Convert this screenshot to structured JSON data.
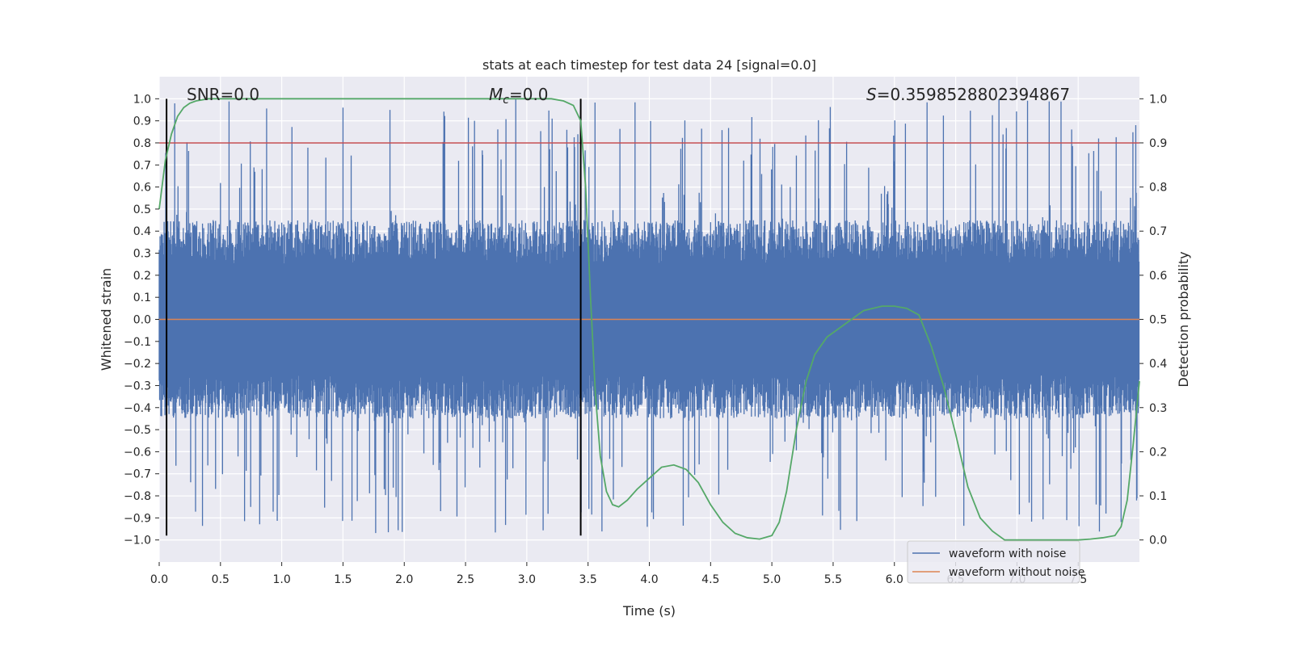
{
  "chart_data": {
    "type": "line",
    "title": "stats at each timestep for test data 24 [signal=0.0]",
    "xlabel": "Time (s)",
    "ylabel": "Whitened strain",
    "ylabel_right": "Detection probability",
    "xlim": [
      0.0,
      8.0
    ],
    "ylim": [
      -1.1,
      1.1
    ],
    "ylim_right": [
      -0.05,
      1.05
    ],
    "x_ticks": [
      0.0,
      0.5,
      1.0,
      1.5,
      2.0,
      2.5,
      3.0,
      3.5,
      4.0,
      4.5,
      5.0,
      5.5,
      6.0,
      6.5,
      7.0,
      7.5
    ],
    "x_tick_labels": [
      "0.0",
      "0.5",
      "1.0",
      "1.5",
      "2.0",
      "2.5",
      "3.0",
      "3.5",
      "4.0",
      "4.5",
      "5.0",
      "5.5",
      "6.0",
      "6.5",
      "7.0",
      "7.5"
    ],
    "y_ticks": [
      1.0,
      0.9,
      0.8,
      0.7,
      0.6,
      0.5,
      0.4,
      0.3,
      0.2,
      0.1,
      0.0,
      -0.1,
      -0.2,
      -0.3,
      -0.4,
      -0.5,
      -0.6,
      -0.7,
      -0.8,
      -0.9,
      -1.0
    ],
    "y_tick_labels": [
      "1.0",
      "0.9",
      "0.8",
      "0.7",
      "0.6",
      "0.5",
      "0.4",
      "0.3",
      "0.2",
      "0.1",
      "0.0",
      "−0.1",
      "−0.2",
      "−0.3",
      "−0.4",
      "−0.5",
      "−0.6",
      "−0.7",
      "−0.8",
      "−0.9",
      "−1.0"
    ],
    "y_right_ticks": [
      1.0,
      0.9,
      0.8,
      0.7,
      0.6,
      0.5,
      0.4,
      0.3,
      0.2,
      0.1,
      0.0
    ],
    "y_right_tick_labels": [
      "1.0",
      "0.9",
      "0.8",
      "0.7",
      "0.6",
      "0.5",
      "0.4",
      "0.3",
      "0.2",
      "0.1",
      "0.0"
    ],
    "grid": true,
    "legend_position": "lower-right",
    "annotations": {
      "snr": "SNR=0.0",
      "mc_symbol": "M",
      "mc_subscript": "c",
      "mc_value": "=0.0",
      "s_symbol": "S",
      "s_value": "=0.3598528802394867"
    },
    "series": [
      {
        "name": "waveform with noise",
        "color": "#4c72b0",
        "style": "dense noise",
        "envelope_upper": 0.45,
        "envelope_lower": -0.45,
        "peak_max": 1.0,
        "peak_min": -0.97
      },
      {
        "name": "waveform without noise",
        "color": "#dd8452",
        "x": [
          0.0,
          8.0
        ],
        "y": [
          0.0,
          0.0
        ]
      },
      {
        "name": "",
        "color": "#55a868",
        "axis": "right",
        "x": [
          0.0,
          0.05,
          0.1,
          0.15,
          0.2,
          0.25,
          0.3,
          0.4,
          0.5,
          1.0,
          2.0,
          3.0,
          3.2,
          3.3,
          3.38,
          3.44,
          3.48,
          3.52,
          3.56,
          3.6,
          3.65,
          3.7,
          3.75,
          3.82,
          3.9,
          4.0,
          4.1,
          4.2,
          4.3,
          4.4,
          4.5,
          4.6,
          4.7,
          4.8,
          4.9,
          5.0,
          5.06,
          5.12,
          5.2,
          5.28,
          5.35,
          5.45,
          5.6,
          5.75,
          5.9,
          6.0,
          6.1,
          6.2,
          6.3,
          6.4,
          6.5,
          6.6,
          6.7,
          6.8,
          6.9,
          7.0,
          7.1,
          7.2,
          7.3,
          7.4,
          7.5,
          7.6,
          7.7,
          7.8,
          7.85,
          7.9,
          7.95,
          8.0
        ],
        "y": [
          0.75,
          0.86,
          0.92,
          0.96,
          0.98,
          0.99,
          0.995,
          1.0,
          1.0,
          1.0,
          1.0,
          1.0,
          1.0,
          0.995,
          0.985,
          0.95,
          0.8,
          0.55,
          0.33,
          0.19,
          0.11,
          0.08,
          0.075,
          0.09,
          0.115,
          0.14,
          0.165,
          0.17,
          0.16,
          0.13,
          0.08,
          0.04,
          0.015,
          0.005,
          0.002,
          0.01,
          0.04,
          0.11,
          0.25,
          0.36,
          0.42,
          0.46,
          0.49,
          0.52,
          0.53,
          0.53,
          0.525,
          0.51,
          0.44,
          0.35,
          0.24,
          0.12,
          0.05,
          0.02,
          0.0,
          0.0,
          0.0,
          0.0,
          0.0,
          0.0,
          0.0,
          0.002,
          0.005,
          0.01,
          0.03,
          0.09,
          0.22,
          0.36
        ]
      }
    ],
    "horizontal_lines": [
      {
        "axis": "left",
        "y": 0.8,
        "color": "#c44e52"
      }
    ],
    "vertical_lines": [
      {
        "x": 0.06,
        "ymin": -0.98,
        "ymax": 1.0,
        "color": "#000000"
      },
      {
        "x": 3.44,
        "ymin": -0.98,
        "ymax": 1.0,
        "color": "#000000"
      }
    ],
    "colors": {
      "axes_bg": "#eaeaf2",
      "grid": "#ffffff",
      "text": "#262626"
    }
  }
}
